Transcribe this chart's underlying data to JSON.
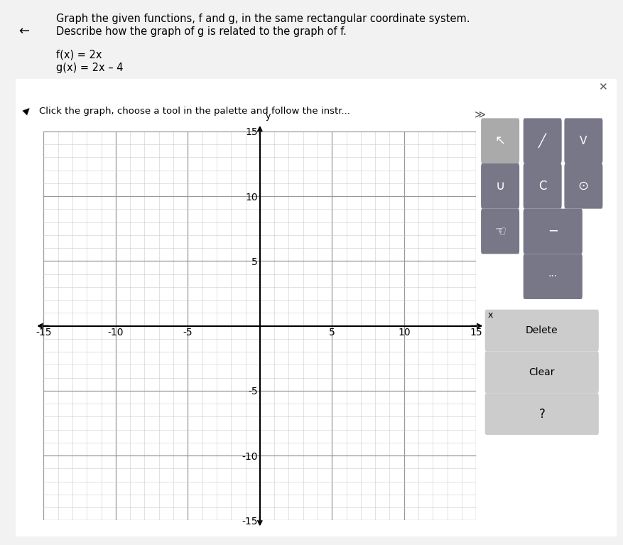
{
  "xlim": [
    -15,
    15
  ],
  "ylim": [
    -15,
    15
  ],
  "xticks": [
    -15,
    -10,
    -5,
    0,
    5,
    10,
    15
  ],
  "yticks": [
    -15,
    -10,
    -5,
    0,
    5,
    10,
    15
  ],
  "xtick_labels": [
    "-15",
    "-10",
    "-5",
    "",
    "5",
    "10",
    "15"
  ],
  "ytick_labels": [
    "-15",
    "-10",
    "-5",
    "",
    "5",
    "10",
    "15"
  ],
  "grid_major_color": "#999999",
  "grid_minor_color": "#cccccc",
  "axis_color": "#000000",
  "graph_bg": "#ffffff",
  "page_bg": "#f2f2f2",
  "panel_bg": "#ffffff",
  "border_color": "#4488cc",
  "banner_bg": "#f0f0b0",
  "banner_text": "Click the graph, choose a tool in the palette and follow the instr...",
  "palette_bg": "#555566",
  "xlabel": "x",
  "ylabel": "y",
  "title_line1": "Graph the given functions, f and g, in the same rectangular coordinate system.",
  "title_line2": "Describe how the graph of g is related to the graph of f.",
  "label_f": "f(x) = 2x",
  "label_g": "g(x) = 2x – 4",
  "figsize": [
    8.77,
    7.67
  ],
  "dpi": 100
}
